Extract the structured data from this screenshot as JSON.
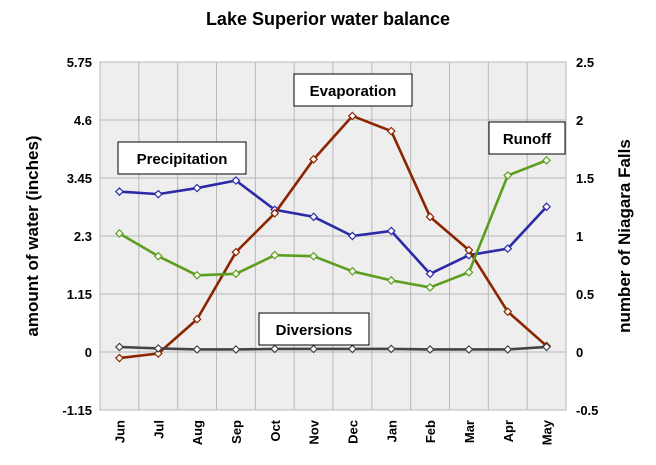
{
  "chart_data": {
    "type": "line",
    "title": "Lake Superior water balance",
    "ylabel": "amount of water (inches)",
    "y2label": "number of Niagara Falls",
    "categories": [
      "Jun",
      "Jul",
      "Aug",
      "Sep",
      "Oct",
      "Nov",
      "Dec",
      "Jan",
      "Feb",
      "Mar",
      "Apr",
      "May"
    ],
    "ylim": [
      -1.15,
      5.75
    ],
    "y2lim": [
      -0.5,
      2.5
    ],
    "yticks": [
      "5.75",
      "4.6",
      "3.45",
      "2.3",
      "1.15",
      "0",
      "-1.15"
    ],
    "y2ticks": [
      "2.5",
      "2",
      "1.5",
      "1",
      "0.5",
      "0",
      "-0.5"
    ],
    "grid": true,
    "series": [
      {
        "name": "Precipitation",
        "color": "#2b2ba8",
        "values": [
          3.18,
          3.13,
          3.25,
          3.4,
          2.82,
          2.68,
          2.3,
          2.4,
          1.55,
          1.92,
          2.05,
          2.88
        ]
      },
      {
        "name": "Evaporation",
        "color": "#8b2500",
        "values": [
          -0.12,
          -0.03,
          0.65,
          1.98,
          2.75,
          3.82,
          4.68,
          4.38,
          2.68,
          2.02,
          0.8,
          0.12
        ]
      },
      {
        "name": "Runoff",
        "color": "#5c9e1e",
        "values": [
          2.35,
          1.9,
          1.52,
          1.55,
          1.92,
          1.9,
          1.6,
          1.42,
          1.28,
          1.58,
          3.5,
          3.8
        ]
      },
      {
        "name": "Diversions",
        "color": "#444444",
        "values": [
          0.1,
          0.07,
          0.05,
          0.05,
          0.06,
          0.06,
          0.06,
          0.06,
          0.05,
          0.05,
          0.05,
          0.1
        ]
      }
    ],
    "annotations": [
      "Precipitation",
      "Evaporation",
      "Runoff",
      "Diversions"
    ]
  }
}
